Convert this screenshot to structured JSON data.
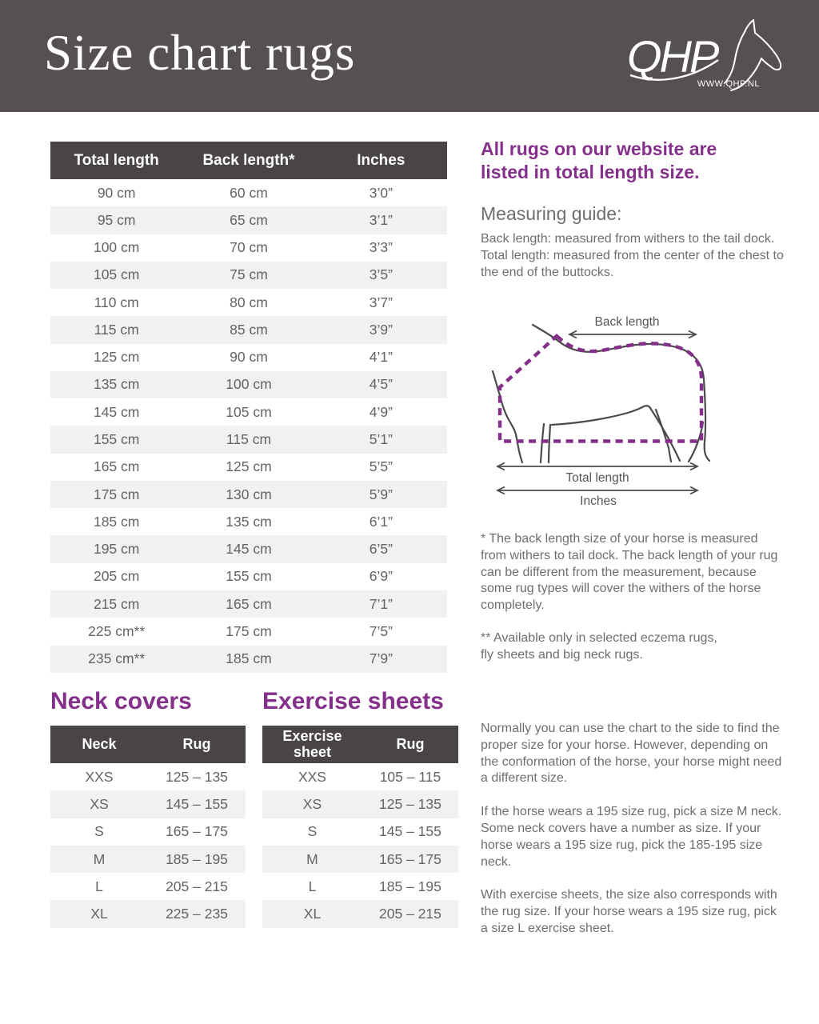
{
  "colors": {
    "band_bg": "#565150",
    "table_header_bg": "#4a4545",
    "row_stripe": "#f2f1f1",
    "accent_purple": "#84308a",
    "body_gray": "#6d6e71",
    "white": "#ffffff"
  },
  "header": {
    "title": "Size chart rugs",
    "brand": "QHP",
    "brand_url": "WWW.QHP.NL"
  },
  "main_table": {
    "columns": [
      "Total length",
      "Back length*",
      "Inches"
    ],
    "rows": [
      [
        "90 cm",
        "60 cm",
        "3’0”"
      ],
      [
        "95 cm",
        "65 cm",
        "3’1”"
      ],
      [
        "100 cm",
        "70 cm",
        "3’3”"
      ],
      [
        "105 cm",
        "75 cm",
        "3’5”"
      ],
      [
        "110 cm",
        "80 cm",
        "3’7”"
      ],
      [
        "115 cm",
        "85 cm",
        "3’9”"
      ],
      [
        "125 cm",
        "90 cm",
        "4’1”"
      ],
      [
        "135 cm",
        "100 cm",
        "4’5”"
      ],
      [
        "145 cm",
        "105 cm",
        "4’9”"
      ],
      [
        "155 cm",
        "115 cm",
        "5’1”"
      ],
      [
        "165 cm",
        "125 cm",
        "5’5”"
      ],
      [
        "175 cm",
        "130 cm",
        "5’9”"
      ],
      [
        "185 cm",
        "135 cm",
        "6’1”"
      ],
      [
        "195 cm",
        "145 cm",
        "6’5”"
      ],
      [
        "205 cm",
        "155 cm",
        "6’9”"
      ],
      [
        "215 cm",
        "165 cm",
        "7’1”"
      ],
      [
        "225 cm**",
        "175 cm",
        "7’5”"
      ],
      [
        "235 cm**",
        "185 cm",
        "7’9”"
      ]
    ]
  },
  "info": {
    "intro": "All rugs on our website are\nlisted in total length size.",
    "measuring_guide_title": "Measuring guide:",
    "measuring_guide_text": "Back length: measured from withers to the tail dock.\nTotal length: measured from the center of the chest to the end of the buttocks.",
    "footnote_back_length": "* The back length size of your horse is measured from withers to tail dock. The back length of your rug can be different from the measurement, because some rug types will cover the withers of the horse completely.",
    "footnote_availability": "** Available only in selected eczema rugs,\nfly sheets and big neck rugs."
  },
  "diagram": {
    "back_length_label": "Back length",
    "total_length_label": "Total length",
    "inches_label": "Inches"
  },
  "neck_covers": {
    "title": "Neck covers",
    "columns": [
      "Neck",
      "Rug"
    ],
    "rows": [
      [
        "XXS",
        "125 – 135"
      ],
      [
        "XS",
        "145 – 155"
      ],
      [
        "S",
        "165 – 175"
      ],
      [
        "M",
        "185 – 195"
      ],
      [
        "L",
        "205 – 215"
      ],
      [
        "XL",
        "225 – 235"
      ]
    ]
  },
  "exercise_sheets": {
    "title": "Exercise sheets",
    "columns": [
      "Exercise sheet",
      "Rug"
    ],
    "rows": [
      [
        "XXS",
        "105 – 115"
      ],
      [
        "XS",
        "125 – 135"
      ],
      [
        "S",
        "145 – 155"
      ],
      [
        "M",
        "165 – 175"
      ],
      [
        "L",
        "185 – 195"
      ],
      [
        "XL",
        "205 – 215"
      ]
    ]
  },
  "notes": {
    "paragraphs": [
      "Normally you can use the chart to the side to find the proper size for your horse.  However, depending on the conformation of the horse, your horse might need a different size.",
      "If the horse wears a 195 size rug, pick a size M neck. Some neck covers have a number as size. If your horse wears a 195 size rug, pick the 185-195 size neck.",
      "With exercise sheets, the size also corresponds with the rug size. If your horse wears a 195 size rug, pick a size L exercise sheet."
    ]
  }
}
